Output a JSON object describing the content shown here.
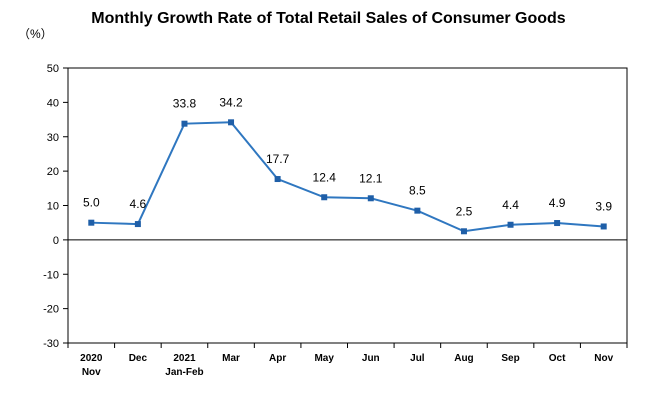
{
  "chart_data": {
    "type": "line",
    "title": "Monthly Growth Rate of Total Retail Sales of Consumer Goods",
    "unit_label": "（%）",
    "categories": [
      [
        "2020",
        "Nov"
      ],
      [
        "Dec"
      ],
      [
        "2021",
        "Jan-Feb"
      ],
      [
        "Mar"
      ],
      [
        "Apr"
      ],
      [
        "May"
      ],
      [
        "Jun"
      ],
      [
        "Jul"
      ],
      [
        "Aug"
      ],
      [
        "Sep"
      ],
      [
        "Oct"
      ],
      [
        "Nov"
      ]
    ],
    "series": [
      {
        "values": [
          5.0,
          4.6,
          33.8,
          34.2,
          17.7,
          12.4,
          12.1,
          8.5,
          2.5,
          4.4,
          4.9,
          3.9
        ],
        "labels": [
          "5.0",
          "4.6",
          "33.8",
          "34.2",
          "17.7",
          "12.4",
          "12.1",
          "8.5",
          "2.5",
          "4.4",
          "4.9",
          "3.9"
        ]
      }
    ],
    "ylim": [
      -30,
      50
    ],
    "yticks": [
      -30,
      -20,
      -10,
      0,
      10,
      20,
      30,
      40,
      50
    ],
    "grid": false,
    "legend": "none",
    "colors": {
      "line": "#2f77c0",
      "marker": "#1f5fa8",
      "axis": "#000000",
      "text": "#000000"
    }
  }
}
